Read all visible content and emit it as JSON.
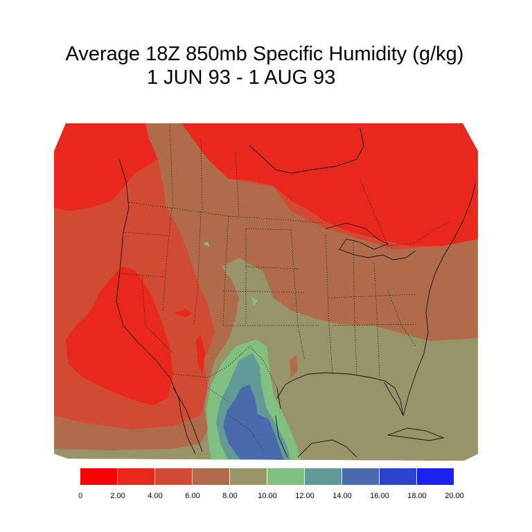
{
  "title": {
    "line1": "Average 18Z 850mb Specific Humidity (g/kg)",
    "line2": "1 JUN 93 - 1 AUG 93"
  },
  "map": {
    "variable": "850mb specific humidity",
    "units": "g/kg",
    "region": "North America (contiguous United States, southern Canada, northern Mexico, Gulf of Mexico)",
    "overlays": [
      "coastlines",
      "state boundaries",
      "national borders"
    ]
  },
  "colorbar": {
    "labels": [
      "0",
      "2.00",
      "4.00",
      "6.00",
      "8.00",
      "10.00",
      "12.00",
      "14.00",
      "16.00",
      "18.00",
      "20.00"
    ],
    "colors": [
      "#ff0000",
      "#e8281c",
      "#d04a34",
      "#b06c4a",
      "#98946a",
      "#80c080",
      "#629a98",
      "#4a6aac",
      "#2c42cc",
      "#1a22ec"
    ]
  },
  "colors": {
    "c0": "#ff0000",
    "c1": "#e8281c",
    "c2": "#d04a34",
    "c3": "#b06c4a",
    "c4": "#98946a",
    "c5": "#80c080",
    "c6": "#629a98",
    "c7": "#4a6aac"
  }
}
